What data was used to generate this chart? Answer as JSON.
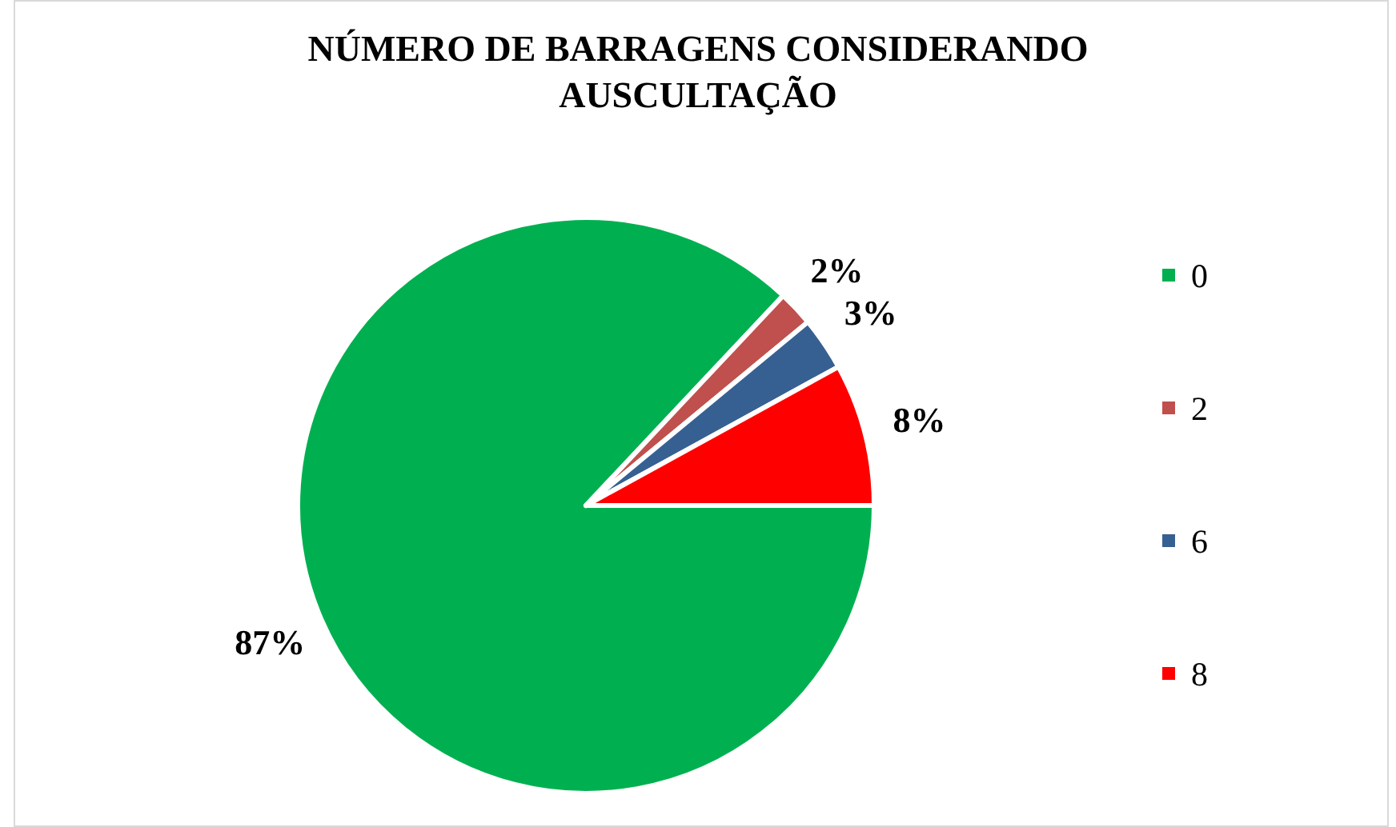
{
  "chart_data": {
    "type": "pie",
    "title": "NÚMERO DE BARRAGENS CONSIDERANDO AUSCULTAÇÃO",
    "categories": [
      "0",
      "2",
      "6",
      "8"
    ],
    "values": [
      87,
      2,
      3,
      8
    ],
    "colors": [
      "#00b050",
      "#c0504d",
      "#376092",
      "#ff0000"
    ],
    "value_labels": [
      "87%",
      "2%",
      "3%",
      "8%"
    ],
    "legend": "right"
  }
}
